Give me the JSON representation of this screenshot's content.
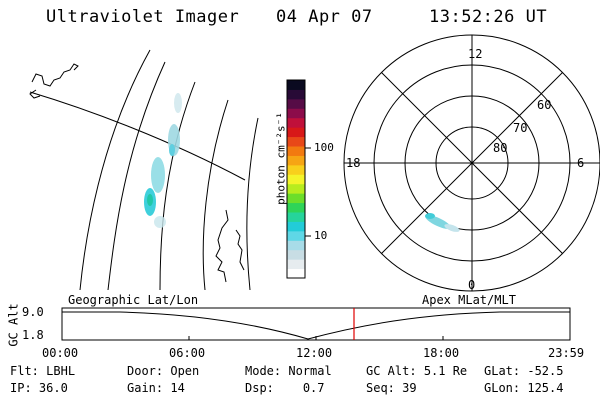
{
  "header": {
    "instrument": "Ultraviolet Imager",
    "date": "04 Apr 07",
    "time": "13:52:26 UT"
  },
  "colorbar": {
    "label": "photon cm⁻²s⁻¹",
    "ticks": [
      "100",
      "10"
    ],
    "colors": [
      "#ffffff",
      "#e6ecef",
      "#c8dde4",
      "#a8dce8",
      "#5fd7e6",
      "#22ccd8",
      "#26d49b",
      "#2ed458",
      "#6cde2a",
      "#b8ec1e",
      "#f4f42a",
      "#f8d01c",
      "#f6a514",
      "#f27a10",
      "#e84818",
      "#d81818",
      "#c0103a",
      "#8c0c4a",
      "#560c46",
      "#280a36",
      "#0a0a20"
    ]
  },
  "geo_panel": {
    "label": "Geographic Lat/Lon"
  },
  "polar_panel": {
    "label": "Apex MLat/MLT",
    "mlt_labels": {
      "top": "12",
      "right": "6",
      "bottom": "0",
      "left": "18"
    },
    "lat_labels": [
      "60",
      "70",
      "80"
    ]
  },
  "timeline": {
    "axis_label": "GC Alt",
    "y_ticks": [
      "9.0",
      "1.8"
    ],
    "x_ticks": [
      "00:00",
      "06:00",
      "12:00",
      "18:00",
      "23:59"
    ],
    "cursor_time": "13:52",
    "cursor_color": "#e00000"
  },
  "info": {
    "filter_label": "Flt:",
    "filter": "LBHL",
    "ip_label": "IP:",
    "ip": "36.0",
    "door_label": "Door:",
    "door": "Open",
    "gain_label": "Gain:",
    "gain": "14",
    "mode_label": "Mode:",
    "mode": "Normal",
    "dsp_label": "Dsp:",
    "dsp": "0.7",
    "gcalt_label": "GC Alt:",
    "gcalt": "5.1 Re",
    "seq_label": "Seq:",
    "seq": "39",
    "glat_label": "GLat:",
    "glat": "-52.5",
    "glon_label": "GLon:",
    "glon": "125.4"
  }
}
